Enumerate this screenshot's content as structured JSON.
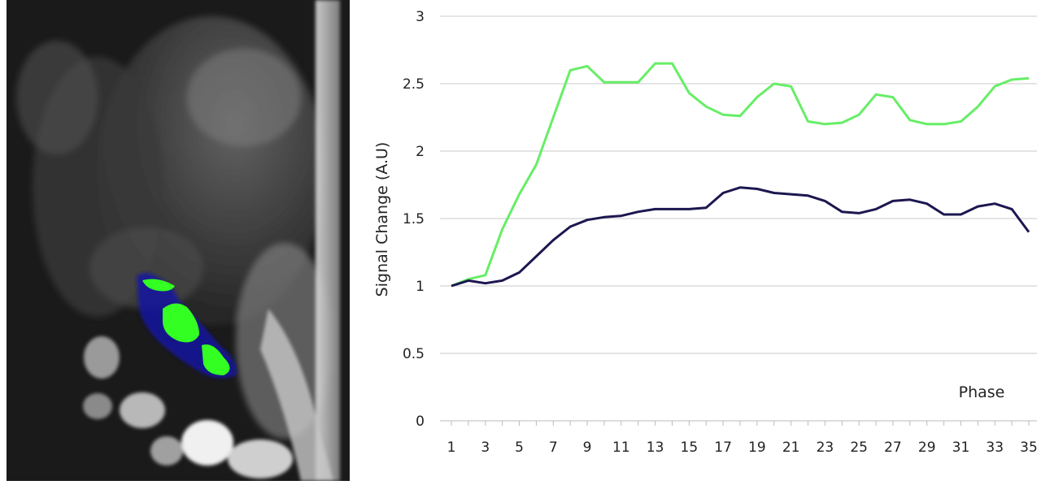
{
  "mri_image": {
    "description_colors": {
      "background": "#1a1a1a",
      "overlay_green": "#33ff22",
      "overlay_blue": "#1818a0"
    }
  },
  "chart_data": {
    "type": "line",
    "title": "",
    "xlabel": "Phase",
    "ylabel": "Signal Change (A.U)",
    "ylim": [
      0,
      3
    ],
    "yticks": [
      0,
      0.5,
      1,
      1.5,
      2,
      2.5,
      3
    ],
    "x": [
      1,
      2,
      3,
      4,
      5,
      6,
      7,
      8,
      9,
      10,
      11,
      12,
      13,
      14,
      15,
      16,
      17,
      18,
      19,
      20,
      21,
      22,
      23,
      24,
      25,
      26,
      27,
      28,
      29,
      30,
      31,
      32,
      33,
      34,
      35
    ],
    "xticks": [
      1,
      3,
      5,
      7,
      9,
      11,
      13,
      15,
      17,
      19,
      21,
      23,
      25,
      27,
      29,
      31,
      33,
      35
    ],
    "grid": "horizontal",
    "series": [
      {
        "color": "#66ee66",
        "values": [
          1.0,
          1.05,
          1.08,
          1.42,
          1.68,
          1.9,
          2.25,
          2.6,
          2.63,
          2.51,
          2.51,
          2.51,
          2.65,
          2.65,
          2.43,
          2.33,
          2.27,
          2.26,
          2.4,
          2.5,
          2.48,
          2.22,
          2.2,
          2.21,
          2.27,
          2.42,
          2.4,
          2.23,
          2.2,
          2.2,
          2.22,
          2.33,
          2.48,
          2.53,
          2.54
        ]
      },
      {
        "color": "#1c1750",
        "values": [
          1.0,
          1.04,
          1.02,
          1.04,
          1.1,
          1.22,
          1.34,
          1.44,
          1.49,
          1.51,
          1.52,
          1.55,
          1.57,
          1.57,
          1.57,
          1.58,
          1.69,
          1.73,
          1.72,
          1.69,
          1.68,
          1.67,
          1.63,
          1.55,
          1.54,
          1.57,
          1.63,
          1.64,
          1.61,
          1.53,
          1.53,
          1.59,
          1.61,
          1.57,
          1.4
        ]
      }
    ]
  }
}
